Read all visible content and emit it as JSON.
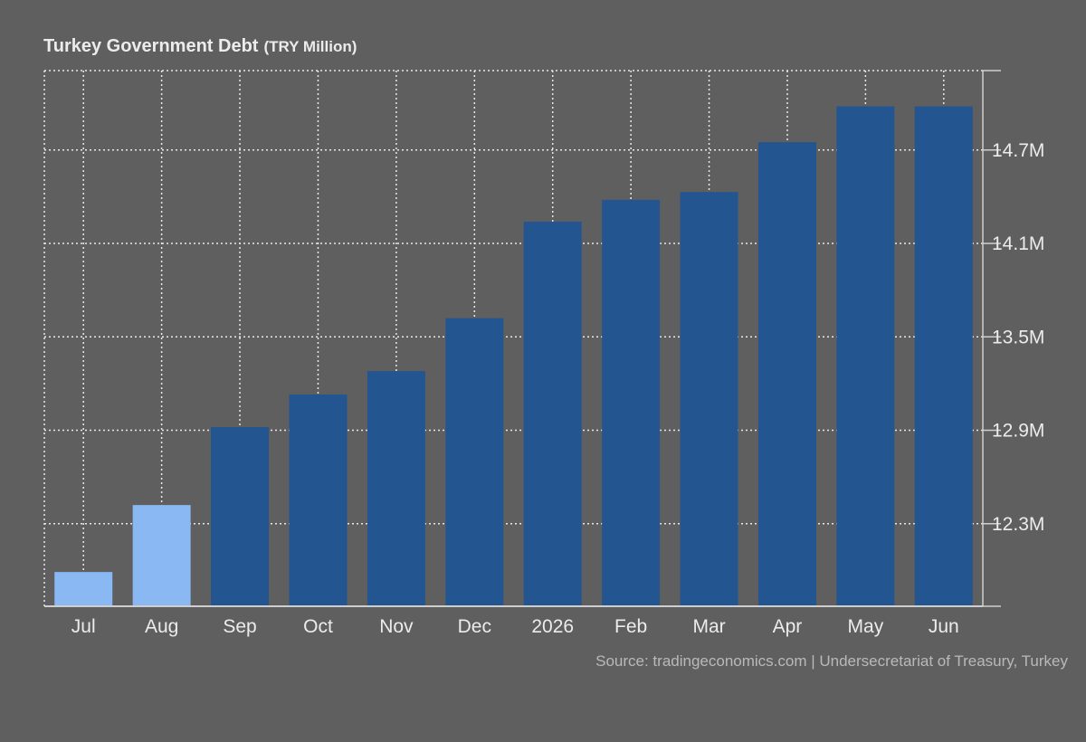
{
  "chart_data": {
    "type": "bar",
    "title": "Turkey Government Debt",
    "unit": "(TRY Million)",
    "categories": [
      "Jul",
      "Aug",
      "Sep",
      "Oct",
      "Nov",
      "Dec",
      "2026",
      "Feb",
      "Mar",
      "Apr",
      "May",
      "Jun"
    ],
    "values": [
      11.99,
      12.42,
      12.92,
      13.13,
      13.28,
      13.62,
      14.24,
      14.38,
      14.43,
      14.75,
      14.98,
      14.98
    ],
    "yticks": [
      12.3,
      12.9,
      13.5,
      14.1,
      14.7
    ],
    "ytick_labels": [
      "12.3M",
      "12.9M",
      "13.5M",
      "14.1M",
      "14.7M"
    ],
    "ylim": [
      11.77,
      15.21
    ],
    "xlabel": "",
    "ylabel": "",
    "grid": true,
    "legend": "none",
    "highlighted": [
      0,
      1
    ],
    "colors": {
      "bar": "#235590",
      "bar_highlight": "#89b8f3",
      "grid": "#e8e8e8",
      "axis": "#cfcfcf",
      "text": "#ececec",
      "background": "#5f5f5f"
    }
  },
  "source": "Source: tradingeconomics.com | Undersecretariat of Treasury, Turkey"
}
